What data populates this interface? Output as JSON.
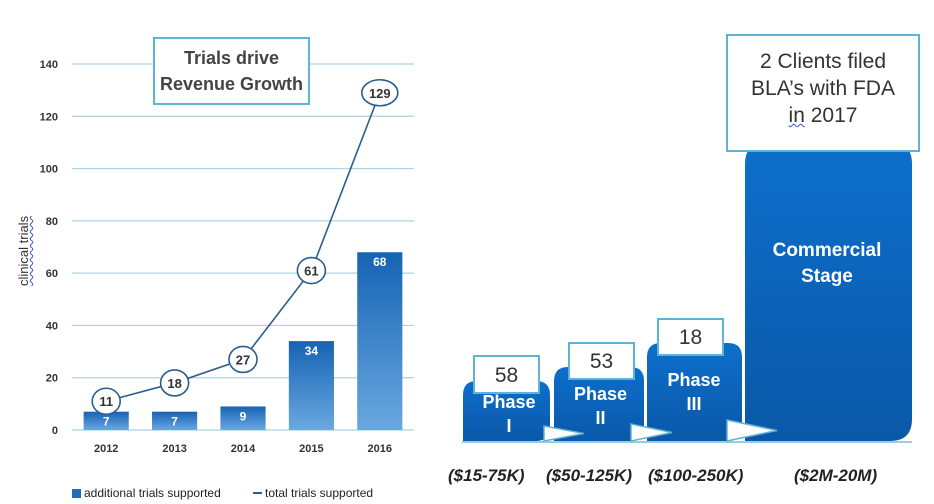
{
  "chart_data": [
    {
      "type": "bar",
      "title": "Trials drive Revenue Growth",
      "title_lines": [
        "Trials drive",
        "Revenue Growth"
      ],
      "ylabel": "clinical trials",
      "ylim": [
        0,
        140
      ],
      "yticks": [
        0,
        20,
        40,
        60,
        80,
        100,
        120,
        140
      ],
      "grid": true,
      "legend_position": "bottom",
      "categories": [
        "2012",
        "2013",
        "2014",
        "2015",
        "2016"
      ],
      "series": [
        {
          "name": "additional trials supported",
          "kind": "bar",
          "color": "#1f6db5",
          "values": [
            7,
            7,
            9,
            34,
            68
          ]
        },
        {
          "name": "total trials supported",
          "kind": "line",
          "color": "#2a5e8c",
          "values": [
            11,
            18,
            27,
            61,
            129
          ]
        }
      ]
    },
    {
      "type": "bar",
      "categories": [
        "Phase I",
        "Phase II",
        "Phase III",
        "Commercial Stage"
      ],
      "category_lines": [
        [
          "Phase",
          "I"
        ],
        [
          "Phase",
          "II"
        ],
        [
          "Phase",
          "III"
        ],
        [
          "Commercial",
          "Stage"
        ]
      ],
      "values": [
        58,
        53,
        18,
        null
      ],
      "value_labels": [
        "58",
        "53",
        "18",
        ""
      ],
      "costs": [
        "($15-75K)",
        "($50-125K)",
        "($100-250K)",
        "($2M-20M)"
      ],
      "color": "#0a67c2"
    }
  ],
  "callout": {
    "lines": [
      "2 Clients filed",
      "BLA’s with FDA"
    ],
    "last_line_prefix": "in",
    "last_line_suffix": " 2017"
  },
  "legend": {
    "bar_label": "additional trials supported",
    "line_label": "total trials supported"
  },
  "colors": {
    "bar": "#1f6db5",
    "line": "#2a5e8c",
    "grid": "#a8d5e2",
    "callout_border": "#5fb3d3",
    "pipeline_blue": "#0a67c2",
    "arrow": "#ffffff"
  }
}
